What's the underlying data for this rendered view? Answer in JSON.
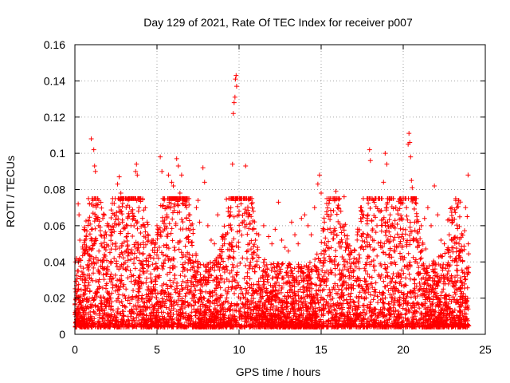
{
  "chart_data": {
    "type": "scatter",
    "title": "Day 129 of 2021, Rate Of TEC Index for receiver p007",
    "xlabel": "GPS time / hours",
    "ylabel": "ROTI / TECUs",
    "xlim": [
      0,
      25
    ],
    "ylim": [
      0,
      0.16
    ],
    "xticks": [
      0,
      5,
      10,
      15,
      20,
      25
    ],
    "yticks": [
      0,
      0.02,
      0.04,
      0.06,
      0.08,
      0.1,
      0.12,
      0.14,
      0.16
    ],
    "xtick_labels": [
      "0",
      "5",
      "10",
      "15",
      "20",
      "25"
    ],
    "ytick_labels": [
      "0",
      "0.02",
      "0.04",
      "0.06",
      "0.08",
      "0.1",
      "0.12",
      "0.14",
      "0.16"
    ],
    "grid": true,
    "marker": "plus",
    "color": "#ff0000",
    "series": [
      {
        "points": [
          [
            0.1,
            0.027
          ],
          [
            0.15,
            0.035
          ],
          [
            0.2,
            0.072
          ],
          [
            0.25,
            0.066
          ],
          [
            0.3,
            0.052
          ],
          [
            0.35,
            0.041
          ],
          [
            0.45,
            0.03
          ],
          [
            0.55,
            0.022
          ],
          [
            0.7,
            0.048
          ],
          [
            0.8,
            0.038
          ],
          [
            1.0,
            0.108
          ],
          [
            1.1,
            0.074
          ],
          [
            1.15,
            0.102
          ],
          [
            1.2,
            0.093
          ],
          [
            1.25,
            0.09
          ],
          [
            1.3,
            0.072
          ],
          [
            1.45,
            0.06
          ],
          [
            1.6,
            0.05
          ],
          [
            1.7,
            0.064
          ],
          [
            1.8,
            0.044
          ],
          [
            2.0,
            0.036
          ],
          [
            2.2,
            0.055
          ],
          [
            2.4,
            0.066
          ],
          [
            2.6,
            0.083
          ],
          [
            2.7,
            0.087
          ],
          [
            2.8,
            0.078
          ],
          [
            2.9,
            0.062
          ],
          [
            3.0,
            0.051
          ],
          [
            3.2,
            0.06
          ],
          [
            3.4,
            0.045
          ],
          [
            3.6,
            0.065
          ],
          [
            3.7,
            0.09
          ],
          [
            3.75,
            0.094
          ],
          [
            3.8,
            0.088
          ],
          [
            3.9,
            0.07
          ],
          [
            4.0,
            0.056
          ],
          [
            4.2,
            0.048
          ],
          [
            4.4,
            0.062
          ],
          [
            4.5,
            0.038
          ],
          [
            4.7,
            0.052
          ],
          [
            5.0,
            0.06
          ],
          [
            5.2,
            0.098
          ],
          [
            5.3,
            0.09
          ],
          [
            5.4,
            0.075
          ],
          [
            5.6,
            0.066
          ],
          [
            5.7,
            0.088
          ],
          [
            5.9,
            0.084
          ],
          [
            6.0,
            0.082
          ],
          [
            6.2,
            0.097
          ],
          [
            6.3,
            0.093
          ],
          [
            6.4,
            0.078
          ],
          [
            6.5,
            0.088
          ],
          [
            6.6,
            0.072
          ],
          [
            6.8,
            0.064
          ],
          [
            7.0,
            0.066
          ],
          [
            7.2,
            0.058
          ],
          [
            7.4,
            0.07
          ],
          [
            7.5,
            0.074
          ],
          [
            7.6,
            0.062
          ],
          [
            7.8,
            0.092
          ],
          [
            7.9,
            0.084
          ],
          [
            8.1,
            0.06
          ],
          [
            8.3,
            0.052
          ],
          [
            8.5,
            0.05
          ],
          [
            8.7,
            0.066
          ],
          [
            8.9,
            0.042
          ],
          [
            9.1,
            0.05
          ],
          [
            9.3,
            0.056
          ],
          [
            9.5,
            0.07
          ],
          [
            9.6,
            0.094
          ],
          [
            9.65,
            0.122
          ],
          [
            9.7,
            0.128
          ],
          [
            9.75,
            0.131
          ],
          [
            9.78,
            0.141
          ],
          [
            9.82,
            0.143
          ],
          [
            9.85,
            0.137
          ],
          [
            9.9,
            0.075
          ],
          [
            10.0,
            0.068
          ],
          [
            10.2,
            0.062
          ],
          [
            10.4,
            0.093
          ],
          [
            10.6,
            0.066
          ],
          [
            10.8,
            0.058
          ],
          [
            11.0,
            0.052
          ],
          [
            11.2,
            0.055
          ],
          [
            11.5,
            0.06
          ],
          [
            11.8,
            0.054
          ],
          [
            12.0,
            0.05
          ],
          [
            12.2,
            0.058
          ],
          [
            12.4,
            0.073
          ],
          [
            12.6,
            0.052
          ],
          [
            12.8,
            0.048
          ],
          [
            13.0,
            0.046
          ],
          [
            13.2,
            0.062
          ],
          [
            13.4,
            0.055
          ],
          [
            13.6,
            0.05
          ],
          [
            13.8,
            0.064
          ],
          [
            14.0,
            0.066
          ],
          [
            14.2,
            0.06
          ],
          [
            14.4,
            0.055
          ],
          [
            14.6,
            0.07
          ],
          [
            14.8,
            0.083
          ],
          [
            14.9,
            0.088
          ],
          [
            15.0,
            0.078
          ],
          [
            15.2,
            0.062
          ],
          [
            15.4,
            0.058
          ],
          [
            15.6,
            0.066
          ],
          [
            15.8,
            0.075
          ],
          [
            15.9,
            0.079
          ],
          [
            16.0,
            0.07
          ],
          [
            16.2,
            0.068
          ],
          [
            16.4,
            0.076
          ],
          [
            16.6,
            0.05
          ],
          [
            16.8,
            0.046
          ],
          [
            17.0,
            0.042
          ],
          [
            17.2,
            0.055
          ],
          [
            17.4,
            0.07
          ],
          [
            17.6,
            0.066
          ],
          [
            17.8,
            0.064
          ],
          [
            17.95,
            0.102
          ],
          [
            18.0,
            0.096
          ],
          [
            18.2,
            0.074
          ],
          [
            18.4,
            0.06
          ],
          [
            18.6,
            0.068
          ],
          [
            18.8,
            0.084
          ],
          [
            18.9,
            0.1
          ],
          [
            19.0,
            0.094
          ],
          [
            19.2,
            0.066
          ],
          [
            19.4,
            0.052
          ],
          [
            19.6,
            0.048
          ],
          [
            19.8,
            0.05
          ],
          [
            20.0,
            0.058
          ],
          [
            20.2,
            0.07
          ],
          [
            20.3,
            0.105
          ],
          [
            20.35,
            0.111
          ],
          [
            20.4,
            0.106
          ],
          [
            20.45,
            0.098
          ],
          [
            20.5,
            0.085
          ],
          [
            20.55,
            0.081
          ],
          [
            20.7,
            0.062
          ],
          [
            20.9,
            0.056
          ],
          [
            21.1,
            0.06
          ],
          [
            21.3,
            0.064
          ],
          [
            21.5,
            0.07
          ],
          [
            21.7,
            0.06
          ],
          [
            21.9,
            0.082
          ],
          [
            22.1,
            0.066
          ],
          [
            22.3,
            0.052
          ],
          [
            22.5,
            0.05
          ],
          [
            22.8,
            0.055
          ],
          [
            23.0,
            0.062
          ],
          [
            23.2,
            0.074
          ],
          [
            23.4,
            0.05
          ],
          [
            23.6,
            0.046
          ],
          [
            23.8,
            0.07
          ],
          [
            23.9,
            0.065
          ],
          [
            23.95,
            0.088
          ]
        ]
      }
    ]
  }
}
